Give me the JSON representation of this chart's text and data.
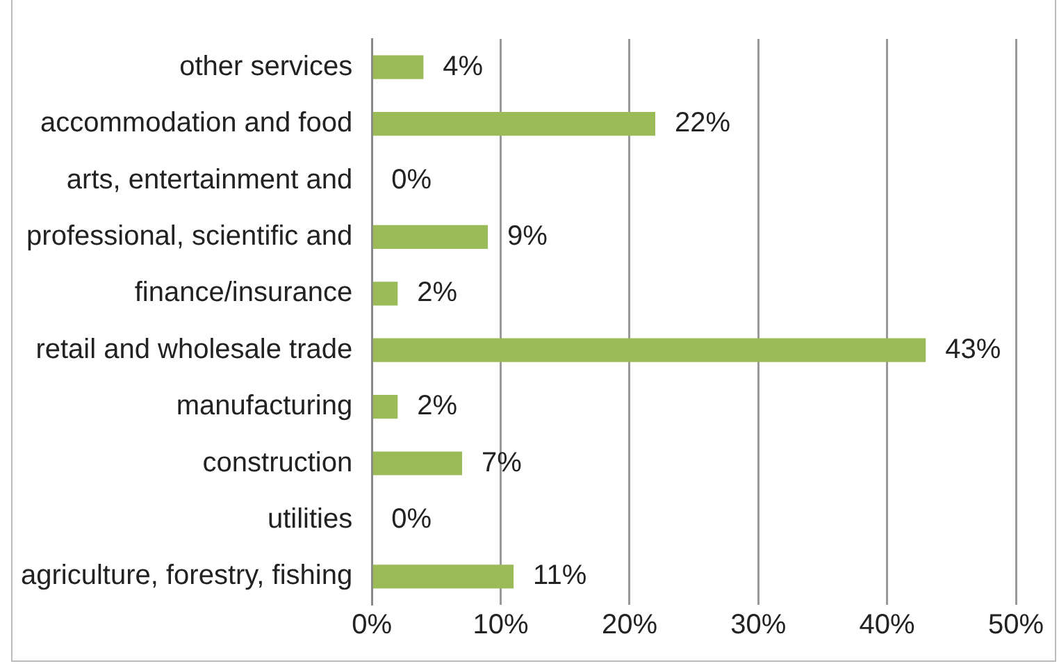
{
  "chart_data": {
    "type": "bar",
    "orientation": "horizontal",
    "categories": [
      "other services",
      "accommodation and food",
      "arts, entertainment and",
      "professional, scientific and",
      "finance/insurance",
      "retail and wholesale trade",
      "manufacturing",
      "construction",
      "utilities",
      "agriculture, forestry, fishing"
    ],
    "values": [
      4,
      22,
      0,
      9,
      2,
      43,
      2,
      7,
      0,
      11
    ],
    "value_labels": [
      "4%",
      "22%",
      "0%",
      "9%",
      "2%",
      "43%",
      "2%",
      "7%",
      "0%",
      "11%"
    ],
    "color": "#9bbb59",
    "xlim": [
      0,
      50
    ],
    "xticks": [
      {
        "value": 0,
        "label": "0%"
      },
      {
        "value": 10,
        "label": "10%"
      },
      {
        "value": 20,
        "label": "20%"
      },
      {
        "value": 30,
        "label": "30%"
      },
      {
        "value": 40,
        "label": "40%"
      },
      {
        "value": 50,
        "label": "50%"
      }
    ],
    "grid": "x",
    "legend": false
  }
}
